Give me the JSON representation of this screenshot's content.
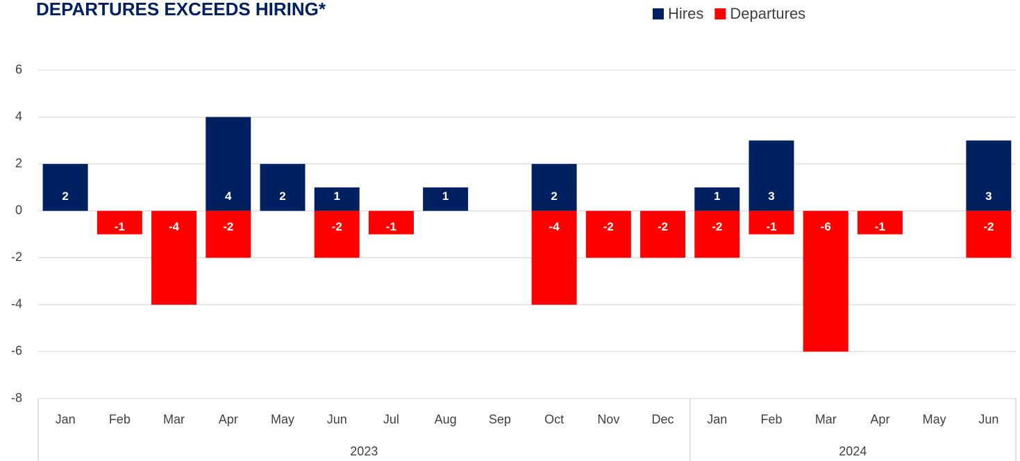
{
  "chart_data": {
    "type": "bar",
    "title": "DEPARTURES EXCEEDS HIRING*",
    "categories": [
      "Jan",
      "Feb",
      "Mar",
      "Apr",
      "May",
      "Jun",
      "Jul",
      "Aug",
      "Sep",
      "Oct",
      "Nov",
      "Dec",
      "Jan",
      "Feb",
      "Mar",
      "Apr",
      "May",
      "Jun"
    ],
    "groups": [
      {
        "name": "2023",
        "size": 12
      },
      {
        "name": "2024",
        "size": 6
      }
    ],
    "series": [
      {
        "name": "Hires",
        "color": "#002060",
        "values": [
          2,
          null,
          null,
          4,
          2,
          1,
          null,
          1,
          null,
          2,
          null,
          null,
          1,
          3,
          null,
          null,
          null,
          3
        ]
      },
      {
        "name": "Departures",
        "color": "#ff0000",
        "values": [
          null,
          -1,
          -4,
          -2,
          null,
          -2,
          -1,
          null,
          null,
          -4,
          -2,
          -2,
          -2,
          -1,
          -6,
          -1,
          null,
          -2
        ]
      }
    ],
    "ylim": [
      -8,
      6
    ],
    "yticks": [
      -8,
      -6,
      -4,
      -2,
      0,
      2,
      4,
      6
    ],
    "grid": true,
    "legend": "top-right",
    "data_labels": true
  }
}
